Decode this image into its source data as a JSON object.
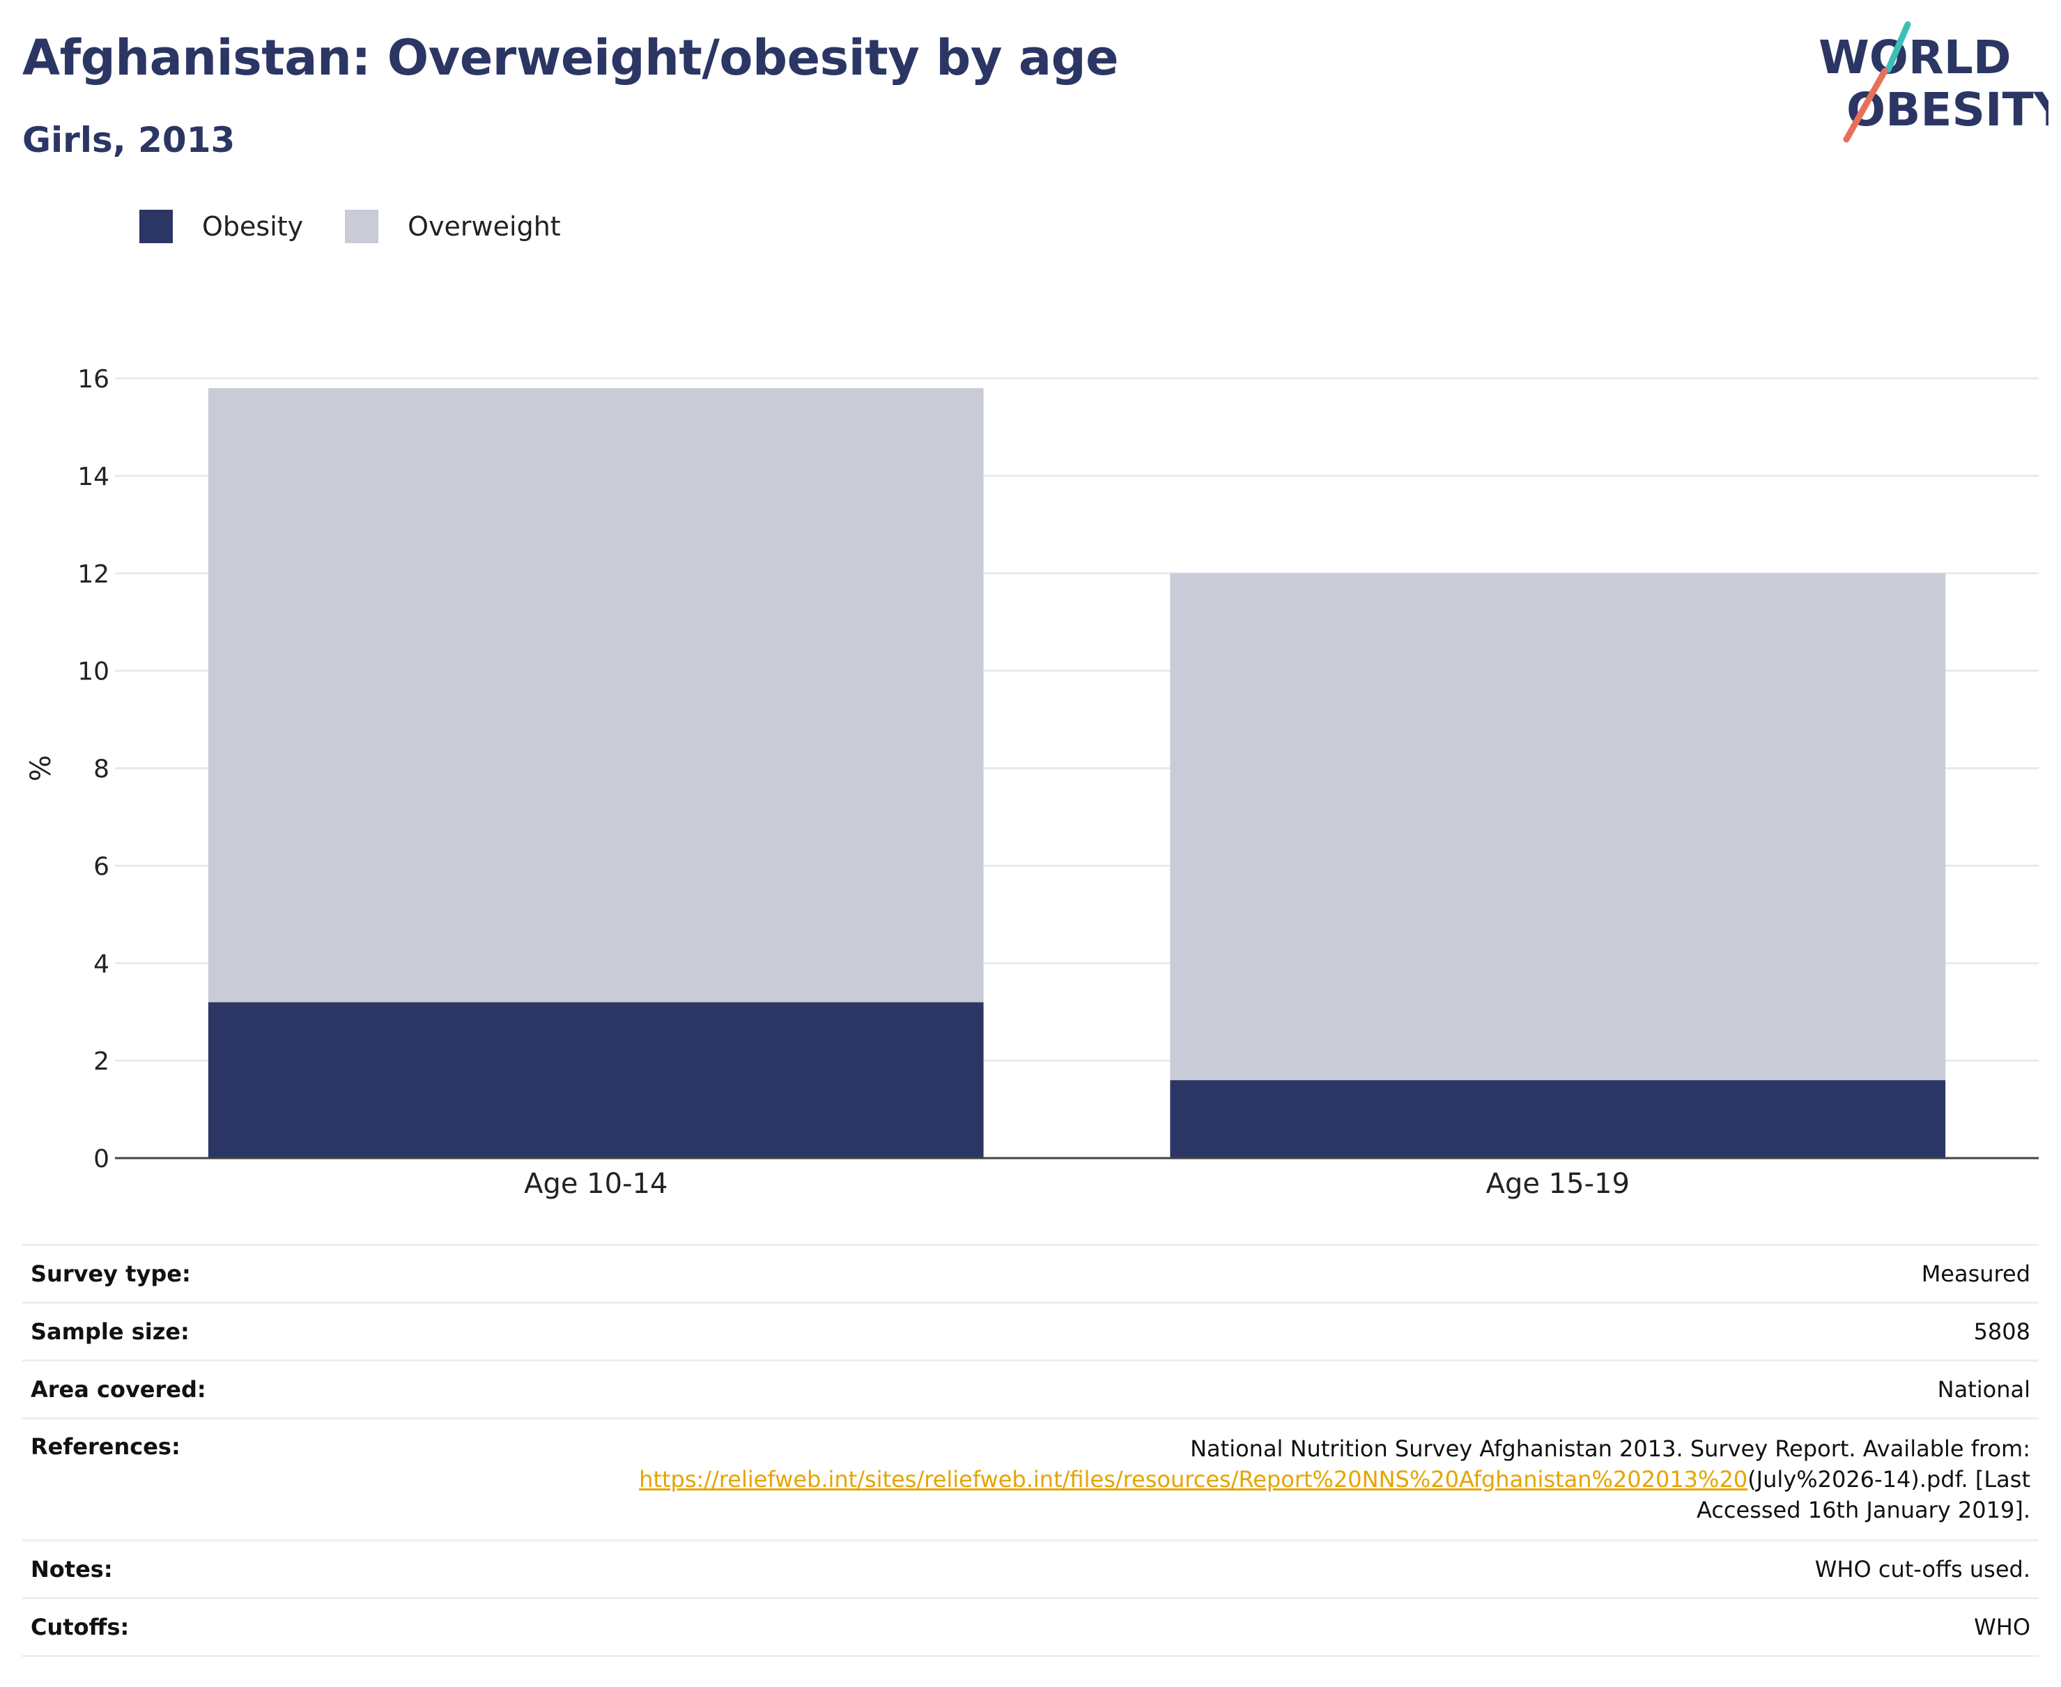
{
  "header": {
    "title": "Afghanistan: Overweight/obesity by age",
    "subtitle": "Girls, 2013",
    "logo_line1": "WORLD",
    "logo_line2": "OBESITY"
  },
  "colors": {
    "obesity": "#2b3664",
    "overweight": "#c9cbd7",
    "title": "#2b3664",
    "link": "#e5a400",
    "logo_teal": "#3bbfb8",
    "logo_coral": "#e8705a"
  },
  "chart_data": {
    "type": "bar",
    "stacked": true,
    "categories": [
      "Age 10-14",
      "Age 15-19"
    ],
    "series": [
      {
        "name": "Obesity",
        "values": [
          3.2,
          1.6
        ],
        "color": "#2b3664"
      },
      {
        "name": "Overweight",
        "values": [
          12.6,
          10.4
        ],
        "color": "#c9cbd7"
      }
    ],
    "ylabel": "%",
    "ylim": [
      0,
      16
    ],
    "yticks": [
      0,
      2,
      4,
      6,
      8,
      10,
      12,
      14,
      16
    ],
    "grid": true,
    "legend_position": "top-left"
  },
  "info": {
    "rows": [
      {
        "label": "Survey type:",
        "value": "Measured"
      },
      {
        "label": "Sample size:",
        "value": "5808"
      },
      {
        "label": "Area covered:",
        "value": "National"
      },
      {
        "label": "References:",
        "value_line1": "National Nutrition Survey Afghanistan 2013. Survey Report. Available from:",
        "link": "https://reliefweb.int/sites/reliefweb.int/files/resources/Report%20NNS%20Afghanistan%202013%20",
        "link_suffix": "(July%2026-14).pdf. [Last",
        "value_line3": "Accessed 16th January 2019]."
      },
      {
        "label": "Notes:",
        "value": "WHO cut-offs used."
      },
      {
        "label": "Cutoffs:",
        "value": "WHO"
      }
    ]
  }
}
